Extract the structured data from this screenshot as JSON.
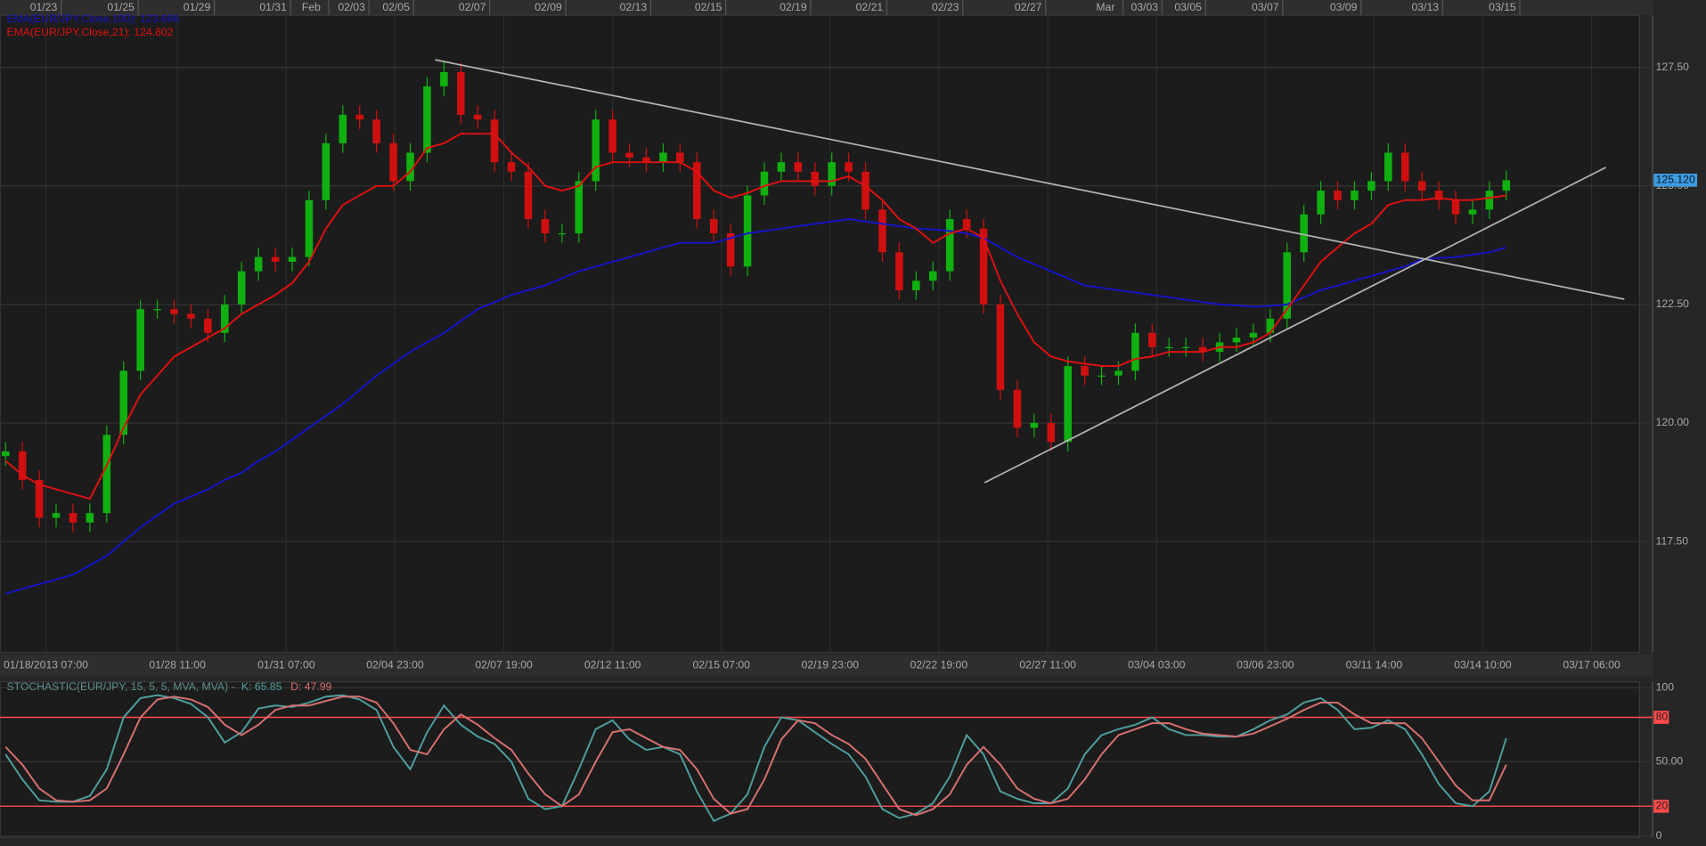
{
  "chart_data": [
    {
      "type": "candlestick",
      "xlim": [
        -0.32,
        96.9
      ],
      "ylim": [
        115.16,
        128.6
      ],
      "grid": true,
      "legend": "top-left",
      "background": "#1c1c1c",
      "up_color": "#10b010",
      "down_color": "#d01010",
      "yticks": [
        {
          "value": 127.5,
          "label": "127.50"
        },
        {
          "value": 125,
          "label": "125.00"
        },
        {
          "value": 122.5,
          "label": "122.50"
        },
        {
          "value": 120,
          "label": "120.00"
        },
        {
          "value": 117.5,
          "label": "117.50"
        }
      ],
      "xticks": [
        {
          "value": 2.39,
          "label": "01/18/2013 07:00"
        },
        {
          "value": 10.19,
          "label": "01/28 11:00"
        },
        {
          "value": 16.65,
          "label": "01/31 07:00"
        },
        {
          "value": 23.1,
          "label": "02/04 23:00"
        },
        {
          "value": 29.55,
          "label": "02/07 19:00"
        },
        {
          "value": 36.0,
          "label": "02/12 11:00"
        },
        {
          "value": 42.45,
          "label": "02/15 07:00"
        },
        {
          "value": 48.9,
          "label": "02/19 23:00"
        },
        {
          "value": 55.35,
          "label": "02/22 19:00"
        },
        {
          "value": 61.81,
          "label": "02/27 11:00"
        },
        {
          "value": 68.26,
          "label": "03/04 03:00"
        },
        {
          "value": 74.71,
          "label": "03/06 23:00"
        },
        {
          "value": 81.16,
          "label": "03/11 14:00"
        },
        {
          "value": 87.61,
          "label": "03/14 10:00"
        },
        {
          "value": 94.06,
          "label": "03/17 06:00"
        }
      ],
      "x2ticks": [
        {
          "value": 2.26,
          "label": "01/23"
        },
        {
          "value": 6.84,
          "label": "01/25"
        },
        {
          "value": 11.35,
          "label": "01/29"
        },
        {
          "value": 15.87,
          "label": "01/31"
        },
        {
          "value": 18.13,
          "label": "Feb"
        },
        {
          "value": 20.52,
          "label": "02/03"
        },
        {
          "value": 23.16,
          "label": "02/05"
        },
        {
          "value": 27.68,
          "label": "02/07"
        },
        {
          "value": 32.19,
          "label": "02/09"
        },
        {
          "value": 37.23,
          "label": "02/13"
        },
        {
          "value": 41.68,
          "label": "02/15"
        },
        {
          "value": 46.71,
          "label": "02/19"
        },
        {
          "value": 51.23,
          "label": "02/21"
        },
        {
          "value": 55.74,
          "label": "02/23"
        },
        {
          "value": 60.65,
          "label": "02/27"
        },
        {
          "value": 65.23,
          "label": "Mar"
        },
        {
          "value": 67.55,
          "label": "03/03"
        },
        {
          "value": 70.13,
          "label": "03/05"
        },
        {
          "value": 74.71,
          "label": "03/07"
        },
        {
          "value": 79.35,
          "label": "03/09"
        },
        {
          "value": 84.19,
          "label": "03/13"
        },
        {
          "value": 88.77,
          "label": "03/15"
        }
      ],
      "ohlc": [
        [
          119.3,
          119.6,
          119.1,
          119.4
        ],
        [
          119.4,
          119.6,
          118.6,
          118.8
        ],
        [
          118.8,
          119.0,
          117.8,
          118.0
        ],
        [
          118.0,
          118.3,
          117.8,
          118.1
        ],
        [
          118.1,
          118.3,
          117.7,
          117.9
        ],
        [
          117.9,
          118.3,
          117.7,
          118.1
        ],
        [
          118.1,
          119.95,
          117.9,
          119.75
        ],
        [
          119.75,
          121.3,
          119.55,
          121.1
        ],
        [
          121.1,
          122.6,
          120.9,
          122.4
        ],
        [
          122.4,
          122.6,
          122.2,
          122.4
        ],
        [
          122.4,
          122.6,
          122.1,
          122.3
        ],
        [
          122.3,
          122.5,
          122.0,
          122.2
        ],
        [
          122.2,
          122.4,
          121.7,
          121.9
        ],
        [
          121.9,
          122.7,
          121.7,
          122.5
        ],
        [
          122.5,
          123.4,
          122.3,
          123.2
        ],
        [
          123.2,
          123.7,
          123.0,
          123.5
        ],
        [
          123.5,
          123.7,
          123.2,
          123.4
        ],
        [
          123.4,
          123.7,
          123.2,
          123.5
        ],
        [
          123.5,
          124.9,
          123.3,
          124.7
        ],
        [
          124.7,
          126.1,
          124.5,
          125.9
        ],
        [
          125.9,
          126.7,
          125.7,
          126.5
        ],
        [
          126.5,
          126.7,
          126.2,
          126.4
        ],
        [
          126.4,
          126.6,
          125.7,
          125.9
        ],
        [
          125.9,
          126.1,
          124.9,
          125.1
        ],
        [
          125.1,
          125.9,
          124.9,
          125.7
        ],
        [
          125.7,
          127.3,
          125.5,
          127.1
        ],
        [
          127.1,
          127.6,
          126.9,
          127.4
        ],
        [
          127.4,
          127.6,
          126.3,
          126.5
        ],
        [
          126.5,
          126.7,
          126.2,
          126.4
        ],
        [
          126.4,
          126.6,
          125.3,
          125.5
        ],
        [
          125.5,
          125.7,
          125.1,
          125.3
        ],
        [
          125.3,
          125.5,
          124.1,
          124.3
        ],
        [
          124.3,
          124.5,
          123.8,
          124.0
        ],
        [
          124.0,
          124.2,
          123.8,
          124.0
        ],
        [
          124.0,
          125.3,
          123.8,
          125.1
        ],
        [
          125.1,
          126.6,
          124.9,
          126.4
        ],
        [
          126.4,
          126.6,
          125.5,
          125.7
        ],
        [
          125.7,
          125.9,
          125.4,
          125.6
        ],
        [
          125.6,
          125.8,
          125.3,
          125.5
        ],
        [
          125.5,
          125.9,
          125.3,
          125.7
        ],
        [
          125.7,
          125.9,
          125.3,
          125.5
        ],
        [
          125.5,
          125.7,
          124.1,
          124.3
        ],
        [
          124.3,
          124.5,
          123.8,
          124.0
        ],
        [
          124.0,
          124.2,
          123.1,
          123.3
        ],
        [
          123.3,
          125.0,
          123.1,
          124.8
        ],
        [
          124.8,
          125.5,
          124.6,
          125.3
        ],
        [
          125.3,
          125.7,
          125.1,
          125.5
        ],
        [
          125.5,
          125.7,
          125.1,
          125.3
        ],
        [
          125.3,
          125.5,
          124.8,
          125.0
        ],
        [
          125.0,
          125.7,
          124.8,
          125.5
        ],
        [
          125.5,
          125.7,
          125.1,
          125.3
        ],
        [
          125.3,
          125.5,
          124.3,
          124.5
        ],
        [
          124.5,
          124.7,
          123.4,
          123.6
        ],
        [
          123.6,
          123.8,
          122.6,
          122.8
        ],
        [
          122.8,
          123.2,
          122.6,
          123.0
        ],
        [
          123.0,
          123.4,
          122.8,
          123.2
        ],
        [
          123.2,
          124.5,
          123.0,
          124.3
        ],
        [
          124.3,
          124.5,
          123.9,
          124.1
        ],
        [
          124.1,
          124.3,
          122.3,
          122.5
        ],
        [
          122.5,
          122.7,
          120.5,
          120.7
        ],
        [
          120.7,
          120.9,
          119.7,
          119.9
        ],
        [
          119.9,
          120.2,
          119.7,
          120.0
        ],
        [
          120.0,
          120.2,
          119.4,
          119.6
        ],
        [
          119.6,
          121.4,
          119.4,
          121.2
        ],
        [
          121.2,
          121.4,
          120.8,
          121.0
        ],
        [
          121.0,
          121.2,
          120.8,
          121.0
        ],
        [
          121.0,
          121.3,
          120.8,
          121.1
        ],
        [
          121.1,
          122.1,
          120.9,
          121.9
        ],
        [
          121.9,
          122.1,
          121.4,
          121.6
        ],
        [
          121.6,
          121.8,
          121.4,
          121.6
        ],
        [
          121.6,
          121.8,
          121.4,
          121.6
        ],
        [
          121.6,
          121.8,
          121.3,
          121.5
        ],
        [
          121.5,
          121.9,
          121.3,
          121.7
        ],
        [
          121.7,
          122.0,
          121.5,
          121.8
        ],
        [
          121.8,
          122.1,
          121.6,
          121.9
        ],
        [
          121.9,
          122.4,
          121.7,
          122.2
        ],
        [
          122.2,
          123.8,
          122.0,
          123.6
        ],
        [
          123.6,
          124.6,
          123.4,
          124.4
        ],
        [
          124.4,
          125.1,
          124.2,
          124.9
        ],
        [
          124.9,
          125.1,
          124.5,
          124.7
        ],
        [
          124.7,
          125.1,
          124.5,
          124.9
        ],
        [
          124.9,
          125.3,
          124.7,
          125.1
        ],
        [
          125.1,
          125.9,
          124.9,
          125.7
        ],
        [
          125.7,
          125.9,
          124.9,
          125.1
        ],
        [
          125.1,
          125.3,
          124.7,
          124.9
        ],
        [
          124.9,
          125.1,
          124.5,
          124.7
        ],
        [
          124.7,
          124.9,
          124.2,
          124.4
        ],
        [
          124.4,
          124.7,
          124.2,
          124.5
        ],
        [
          124.5,
          125.1,
          124.3,
          124.9
        ],
        [
          124.9,
          125.32,
          124.7,
          125.12
        ]
      ],
      "series": [
        {
          "name": "EMA(EUR/JPY,Close,100): 123.698",
          "color": "#1414c8",
          "values": [
            116.4,
            116.5,
            116.6,
            116.7,
            116.8,
            117.0,
            117.2,
            117.5,
            117.8,
            118.05,
            118.3,
            118.45,
            118.6,
            118.8,
            118.95,
            119.2,
            119.4,
            119.65,
            119.9,
            120.15,
            120.4,
            120.7,
            121.0,
            121.25,
            121.5,
            121.7,
            121.9,
            122.15,
            122.4,
            122.55,
            122.7,
            122.8,
            122.9,
            123.05,
            123.2,
            123.3,
            123.4,
            123.5,
            123.6,
            123.7,
            123.8,
            123.8,
            123.8,
            123.9,
            124.0,
            124.05,
            124.1,
            124.15,
            124.2,
            124.25,
            124.3,
            124.25,
            124.2,
            124.15,
            124.1,
            124.08,
            124.05,
            124.0,
            123.9,
            123.7,
            123.5,
            123.35,
            123.2,
            123.05,
            122.9,
            122.85,
            122.8,
            122.75,
            122.7,
            122.65,
            122.6,
            122.55,
            122.5,
            122.48,
            122.45,
            122.47,
            122.5,
            122.65,
            122.8,
            122.9,
            123.0,
            123.1,
            123.2,
            123.3,
            123.45,
            123.48,
            123.5,
            123.55,
            123.6,
            123.7
          ]
        },
        {
          "name": "EMA(EUR/JPY,Close,21): 124.802",
          "color": "#e01010",
          "values": [
            119.2,
            118.9,
            118.7,
            118.6,
            118.5,
            118.4,
            119.1,
            119.9,
            120.6,
            121.0,
            121.4,
            121.6,
            121.8,
            122.0,
            122.3,
            122.5,
            122.7,
            122.95,
            123.4,
            124.1,
            124.6,
            124.8,
            125.0,
            125.0,
            125.3,
            125.8,
            125.9,
            126.1,
            126.1,
            126.1,
            125.7,
            125.4,
            125.0,
            124.9,
            125.0,
            125.4,
            125.5,
            125.5,
            125.5,
            125.5,
            125.5,
            125.3,
            124.9,
            124.75,
            124.85,
            125.0,
            125.1,
            125.1,
            125.1,
            125.1,
            125.2,
            125.0,
            124.7,
            124.3,
            124.1,
            123.8,
            124.0,
            124.1,
            123.9,
            123.0,
            122.3,
            121.7,
            121.4,
            121.3,
            121.25,
            121.2,
            121.2,
            121.35,
            121.4,
            121.5,
            121.5,
            121.5,
            121.6,
            121.6,
            121.7,
            121.9,
            122.4,
            122.9,
            123.4,
            123.7,
            124.0,
            124.2,
            124.6,
            124.7,
            124.7,
            124.75,
            124.7,
            124.7,
            124.75,
            124.8
          ]
        }
      ],
      "trendlines": [
        {
          "color": "#b4b4b4",
          "x": [
            25.48,
            96.0
          ],
          "y": [
            127.66,
            122.61
          ]
        },
        {
          "color": "#b4b4b4",
          "x": [
            58.06,
            94.9
          ],
          "y": [
            118.74,
            125.39
          ]
        }
      ],
      "last_price": {
        "value": 125.12,
        "label": "125.120"
      }
    },
    {
      "type": "line",
      "title": "STOCHASTIC(EUR/JPY, 15, 5, 5, MVA, MVA) -",
      "xlim": [
        -0.32,
        96.9
      ],
      "ylim": [
        -1,
        104
      ],
      "grid": true,
      "legend": "top-left",
      "background": "#1c1c1c",
      "level_color": "#ff4a4a",
      "levels": [
        80,
        20
      ],
      "yticks": [
        100,
        80,
        {
          "value": 50,
          "label": "50.00"
        },
        20,
        0
      ],
      "series": [
        {
          "name": "K: 65.85",
          "color": "#4f9e9e",
          "values": [
            55,
            38,
            24,
            23,
            23,
            27,
            45,
            80,
            93,
            95,
            93,
            89,
            80,
            63,
            70,
            86,
            88,
            87,
            90,
            94,
            95,
            92,
            85,
            60,
            45,
            70,
            88,
            75,
            67,
            62,
            50,
            25,
            18,
            20,
            45,
            72,
            78,
            65,
            58,
            60,
            55,
            30,
            10,
            15,
            28,
            60,
            80,
            78,
            70,
            62,
            55,
            40,
            18,
            12,
            15,
            22,
            40,
            68,
            55,
            30,
            25,
            22,
            22,
            32,
            55,
            68,
            72,
            75,
            80,
            72,
            68,
            68,
            67,
            67,
            72,
            78,
            82,
            90,
            93,
            85,
            72,
            73,
            78,
            72,
            55,
            35,
            22,
            20,
            30,
            65.85
          ]
        },
        {
          "name": "D: 47.99",
          "color": "#d87070",
          "values": [
            60,
            48,
            32,
            24,
            23,
            24,
            32,
            55,
            80,
            92,
            94,
            92,
            87,
            75,
            68,
            75,
            85,
            88,
            88,
            91,
            94,
            94,
            90,
            76,
            58,
            55,
            72,
            82,
            75,
            66,
            58,
            42,
            28,
            20,
            28,
            50,
            70,
            72,
            66,
            60,
            58,
            45,
            25,
            15,
            18,
            38,
            65,
            78,
            76,
            68,
            62,
            52,
            35,
            18,
            14,
            18,
            28,
            48,
            60,
            48,
            32,
            25,
            22,
            25,
            38,
            55,
            68,
            72,
            76,
            76,
            72,
            69,
            68,
            67,
            69,
            74,
            79,
            85,
            90,
            90,
            82,
            76,
            76,
            76,
            66,
            50,
            34,
            24,
            24,
            47.99
          ]
        }
      ]
    }
  ]
}
